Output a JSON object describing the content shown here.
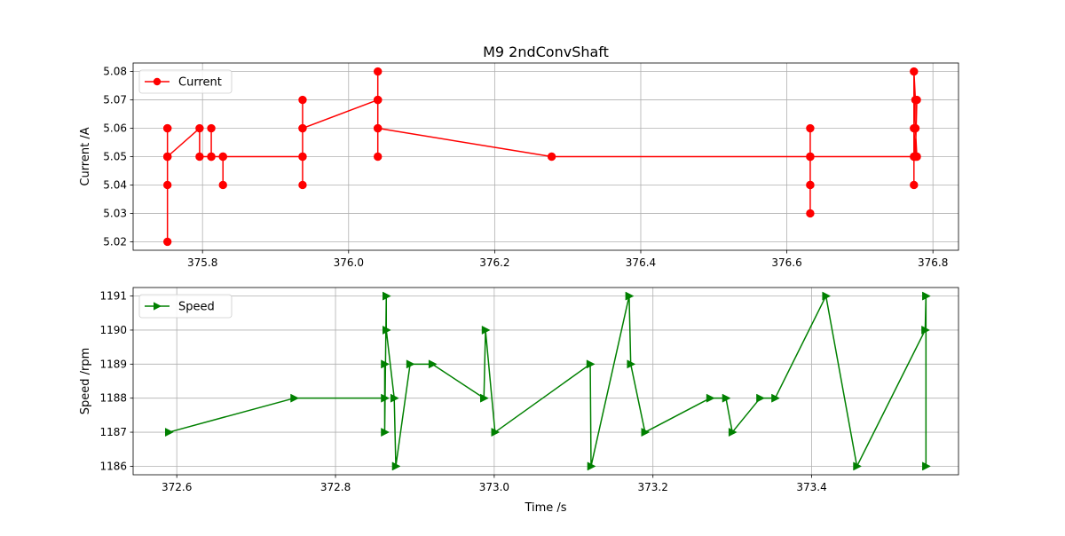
{
  "figure": {
    "title": "M9 2ndConvShaft"
  },
  "chart_data": [
    {
      "type": "line",
      "name": "current-chart",
      "xlabel": "",
      "ylabel": "Current /A",
      "xlim": [
        375.705,
        376.835
      ],
      "ylim": [
        5.017,
        5.083
      ],
      "xticks": [
        375.8,
        376.0,
        376.2,
        376.4,
        376.6,
        376.8
      ],
      "xtick_labels": [
        "375.8",
        "376.0",
        "376.2",
        "376.4",
        "376.6",
        "376.8"
      ],
      "yticks": [
        5.02,
        5.03,
        5.04,
        5.05,
        5.06,
        5.07,
        5.08
      ],
      "ytick_labels": [
        "5.02",
        "5.03",
        "5.04",
        "5.05",
        "5.06",
        "5.07",
        "5.08"
      ],
      "grid": true,
      "legend_position": "top-left",
      "series": [
        {
          "name": "Current",
          "color": "#ff0000",
          "marker": "circle",
          "x": [
            375.752,
            375.752,
            375.752,
            375.752,
            375.752,
            375.752,
            375.752,
            375.796,
            375.796,
            375.812,
            375.812,
            375.812,
            375.828,
            375.828,
            375.828,
            375.937,
            375.937,
            375.937,
            375.937,
            375.937,
            375.937,
            376.04,
            376.04,
            376.04,
            376.04,
            376.04,
            376.04,
            376.04,
            376.278,
            376.632,
            376.632,
            376.632,
            376.632,
            376.632,
            376.632,
            376.632,
            376.774,
            376.774,
            376.774,
            376.776,
            376.774,
            376.776,
            376.778,
            376.776,
            376.778,
            376.776
          ],
          "y": [
            5.05,
            5.06,
            5.05,
            5.04,
            5.02,
            5.06,
            5.05,
            5.06,
            5.05,
            5.05,
            5.06,
            5.05,
            5.05,
            5.04,
            5.05,
            5.05,
            5.04,
            5.06,
            5.07,
            5.05,
            5.06,
            5.07,
            5.07,
            5.08,
            5.05,
            5.06,
            5.07,
            5.06,
            5.05,
            5.05,
            5.04,
            5.03,
            5.06,
            5.05,
            5.04,
            5.05,
            5.05,
            5.04,
            5.08,
            5.07,
            5.06,
            5.05,
            5.07,
            5.06,
            5.05,
            5.06
          ]
        }
      ]
    },
    {
      "type": "line",
      "name": "speed-chart",
      "xlabel": "Time /s",
      "ylabel": "Speed /rpm",
      "xlim": [
        372.545,
        373.585
      ],
      "ylim": [
        1185.75,
        1191.25
      ],
      "xticks": [
        372.6,
        372.8,
        373.0,
        373.2,
        373.4
      ],
      "xtick_labels": [
        "372.6",
        "372.8",
        "373.0",
        "373.2",
        "373.4"
      ],
      "yticks": [
        1186,
        1187,
        1188,
        1189,
        1190,
        1191
      ],
      "ytick_labels": [
        "1186",
        "1187",
        "1188",
        "1189",
        "1190",
        "1191"
      ],
      "grid": true,
      "legend_position": "top-left",
      "series": [
        {
          "name": "Speed",
          "color": "#008000",
          "marker": "triangle-right",
          "x": [
            372.59,
            372.748,
            372.862,
            372.862,
            372.862,
            372.864,
            372.864,
            372.874,
            372.876,
            372.894,
            372.922,
            372.987,
            372.989,
            373.001,
            373.121,
            373.122,
            373.17,
            373.172,
            373.19,
            373.272,
            373.292,
            373.3,
            373.335,
            373.354,
            373.418,
            373.457,
            373.543,
            373.544,
            373.544
          ],
          "y": [
            1187,
            1188,
            1188,
            1189,
            1187,
            1191,
            1190,
            1188,
            1186,
            1189,
            1189,
            1188,
            1190,
            1187,
            1189,
            1186,
            1191,
            1189,
            1187,
            1188,
            1188,
            1187,
            1188,
            1188,
            1191,
            1186,
            1190,
            1191,
            1186
          ]
        }
      ]
    }
  ]
}
